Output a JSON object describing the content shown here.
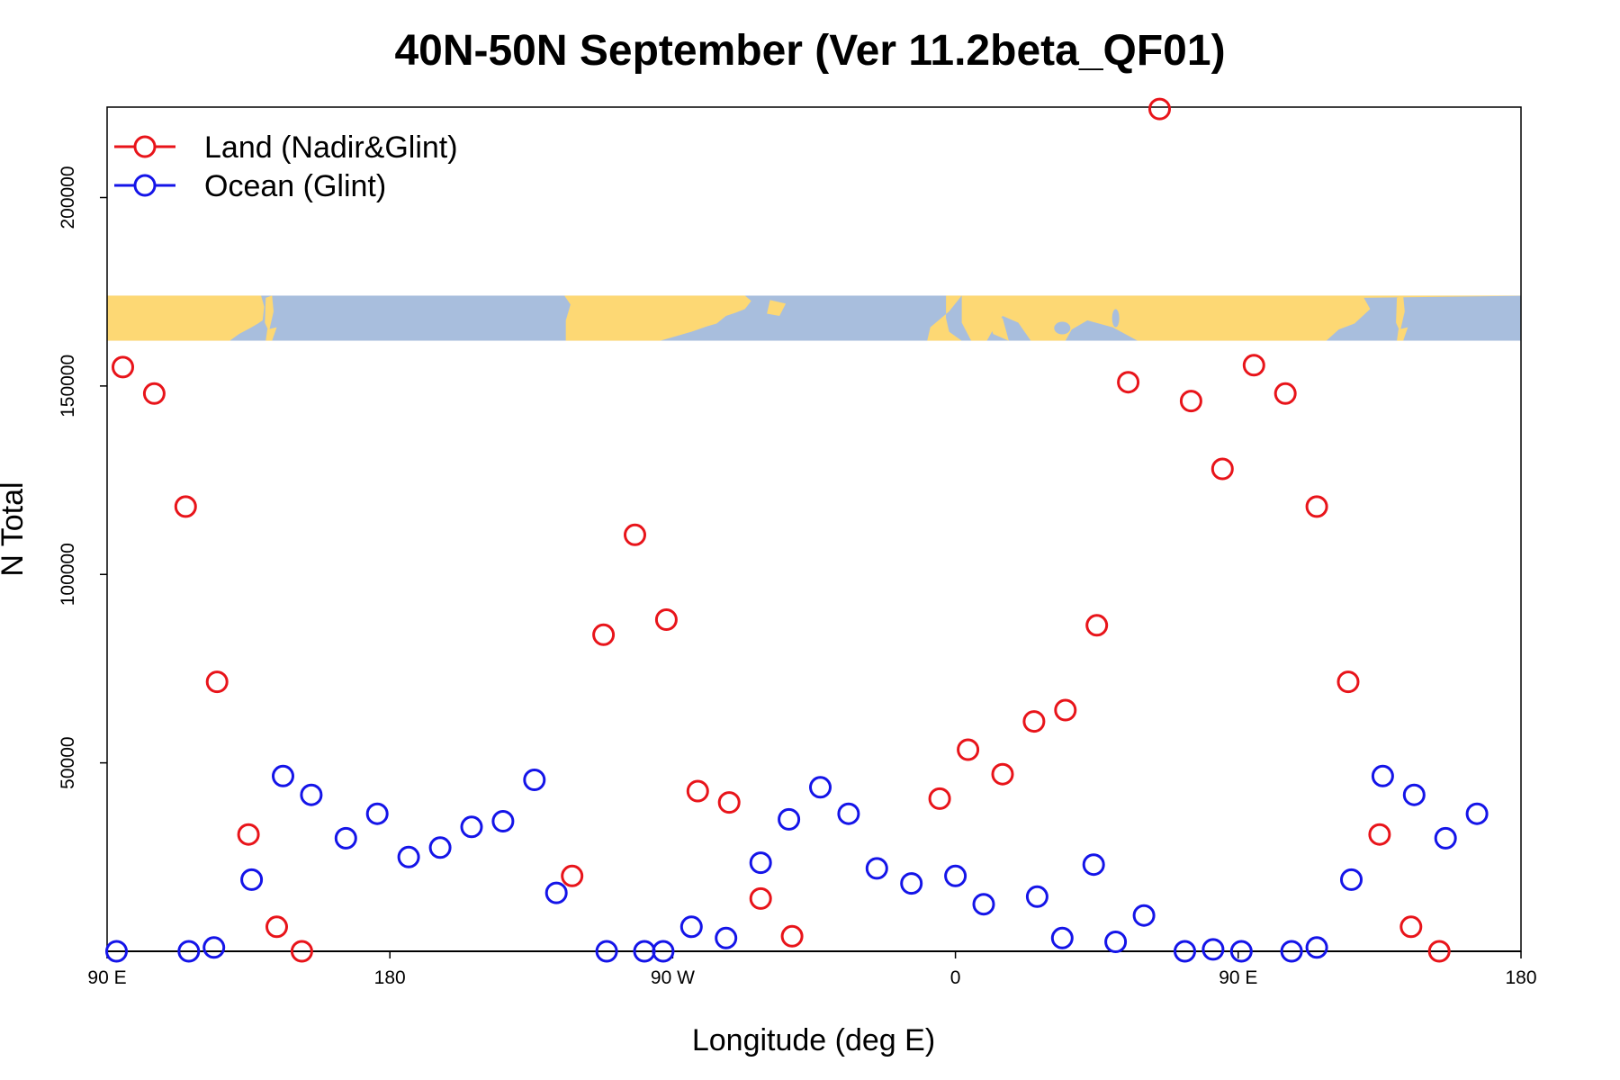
{
  "chart_data": {
    "type": "scatter",
    "title": "40N-50N September (Ver 11.2beta_QF01)",
    "xlabel": "Longitude (deg E)",
    "ylabel": "N Total",
    "xlim": [
      90,
      540
    ],
    "ylim": [
      0,
      224000
    ],
    "x_ticks": [
      {
        "value": 90,
        "label": "90 E"
      },
      {
        "value": 180,
        "label": "180"
      },
      {
        "value": 270,
        "label": "90 W"
      },
      {
        "value": 360,
        "label": "0"
      },
      {
        "value": 450,
        "label": "90 E"
      },
      {
        "value": 540,
        "label": "180"
      }
    ],
    "y_ticks": [
      {
        "value": 50000,
        "label": "50000"
      },
      {
        "value": 100000,
        "label": "100000"
      },
      {
        "value": 150000,
        "label": "150000"
      },
      {
        "value": 200000,
        "label": "200000"
      }
    ],
    "map_strip": {
      "y_range": [
        162000,
        174000
      ],
      "land_color": "#FDD874",
      "ocean_color": "#A8BEDD",
      "description": "world map strip of the 40N-50N latitude band"
    },
    "legend": {
      "position": "top-left"
    },
    "series": [
      {
        "name": "Land (Nadir&Glint)",
        "color": "#E8141A",
        "x": [
          95,
          105,
          115,
          125,
          135,
          144,
          152,
          238,
          248,
          258,
          268,
          278,
          288,
          298,
          308,
          355,
          364,
          375,
          385,
          395,
          405,
          415,
          425,
          435,
          445,
          455,
          465,
          475,
          485,
          495,
          505,
          514
        ],
        "y": [
          155000,
          148000,
          118000,
          71500,
          31000,
          6500,
          0,
          20000,
          84000,
          110500,
          88000,
          42500,
          39500,
          14000,
          4000,
          40500,
          53500,
          47000,
          61000,
          64000,
          86500,
          151000,
          223500,
          146000,
          128000,
          155500,
          148000,
          118000,
          71500,
          31000,
          6500,
          0
        ]
      },
      {
        "name": "Ocean (Glint)",
        "color": "#1414E8",
        "x": [
          93,
          116,
          124,
          136,
          146,
          155,
          166,
          176,
          186,
          196,
          206,
          216,
          226,
          233,
          249,
          261,
          267,
          276,
          287,
          298,
          307,
          317,
          326,
          335,
          346,
          360,
          369,
          386,
          394,
          404,
          411,
          420,
          433,
          442,
          451,
          467,
          475,
          486,
          496,
          506,
          516,
          526
        ],
        "y": [
          0,
          0,
          1000,
          19000,
          46500,
          41500,
          30000,
          36500,
          25000,
          27500,
          33000,
          34500,
          45500,
          15500,
          0,
          0,
          0,
          6500,
          3500,
          23500,
          35000,
          43500,
          36500,
          22000,
          18000,
          20000,
          12500,
          14500,
          3500,
          23000,
          2500,
          9500,
          0,
          500,
          0,
          0,
          1000,
          19000,
          46500,
          41500,
          30000,
          36500
        ]
      }
    ]
  }
}
